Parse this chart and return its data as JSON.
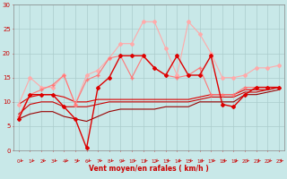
{
  "x": [
    0,
    1,
    2,
    3,
    4,
    5,
    6,
    7,
    8,
    9,
    10,
    11,
    12,
    13,
    14,
    15,
    16,
    17,
    18,
    19,
    20,
    21,
    22,
    23
  ],
  "series": [
    {
      "name": "rafales_max",
      "color": "#ffaaaa",
      "lw": 0.8,
      "marker": "D",
      "ms": 2.0,
      "y": [
        9.5,
        15.0,
        13.0,
        13.0,
        15.5,
        9.5,
        15.5,
        16.5,
        19.0,
        22.0,
        22.0,
        26.5,
        26.5,
        21.0,
        15.5,
        26.5,
        24.0,
        20.0,
        15.0,
        15.0,
        15.5,
        17.0,
        17.0,
        17.5
      ]
    },
    {
      "name": "moyen_plus",
      "color": "#ff7777",
      "lw": 0.8,
      "marker": "+",
      "ms": 3.5,
      "y": [
        7.0,
        11.5,
        12.5,
        13.5,
        15.5,
        9.5,
        14.5,
        15.5,
        19.0,
        19.5,
        15.0,
        19.5,
        17.0,
        15.5,
        15.0,
        15.5,
        17.0,
        11.5,
        11.5,
        11.5,
        13.0,
        13.0,
        13.0,
        13.0
      ]
    },
    {
      "name": "moyen",
      "color": "#dd0000",
      "lw": 1.0,
      "marker": "D",
      "ms": 2.0,
      "y": [
        6.5,
        11.5,
        11.5,
        11.5,
        9.0,
        6.5,
        0.5,
        13.0,
        15.0,
        19.5,
        19.5,
        19.5,
        17.0,
        15.5,
        19.5,
        15.5,
        15.5,
        19.5,
        9.5,
        9.0,
        11.5,
        13.0,
        13.0,
        13.0
      ]
    },
    {
      "name": "wind_med",
      "color": "#dd0000",
      "lw": 0.8,
      "marker": null,
      "ms": 0,
      "y": [
        9.5,
        11.0,
        11.5,
        11.5,
        11.0,
        10.0,
        10.0,
        10.5,
        10.5,
        10.5,
        10.5,
        10.5,
        10.5,
        10.5,
        10.5,
        10.5,
        11.0,
        11.5,
        11.5,
        11.5,
        12.5,
        12.5,
        12.5,
        13.0
      ]
    },
    {
      "name": "wind_low1",
      "color": "#cc0000",
      "lw": 0.8,
      "marker": null,
      "ms": 0,
      "y": [
        7.5,
        9.5,
        10.0,
        10.0,
        9.0,
        9.0,
        9.0,
        9.5,
        10.0,
        10.0,
        10.0,
        10.0,
        10.0,
        10.0,
        10.0,
        10.0,
        10.5,
        11.0,
        11.0,
        11.0,
        12.0,
        12.0,
        12.5,
        13.0
      ]
    },
    {
      "name": "wind_low2",
      "color": "#990000",
      "lw": 0.8,
      "marker": null,
      "ms": 0,
      "y": [
        6.5,
        7.5,
        8.0,
        8.0,
        7.0,
        6.5,
        6.0,
        7.0,
        8.0,
        8.5,
        8.5,
        8.5,
        8.5,
        9.0,
        9.0,
        9.0,
        10.0,
        10.0,
        10.0,
        10.0,
        11.5,
        11.5,
        12.0,
        12.5
      ]
    }
  ],
  "xlabel": "Vent moyen/en rafales ( km/h )",
  "xlabel_color": "#cc0000",
  "bg_color": "#c8e8e8",
  "grid_color": "#aacccc",
  "axis_color": "#888888",
  "tick_color": "#cc0000",
  "arrow_color": "#cc0000",
  "ylim": [
    0,
    30
  ],
  "xlim": [
    -0.5,
    23.5
  ],
  "yticks": [
    0,
    5,
    10,
    15,
    20,
    25,
    30
  ],
  "xticks": [
    0,
    1,
    2,
    3,
    4,
    5,
    6,
    7,
    8,
    9,
    10,
    11,
    12,
    13,
    14,
    15,
    16,
    17,
    18,
    19,
    20,
    21,
    22,
    23
  ]
}
